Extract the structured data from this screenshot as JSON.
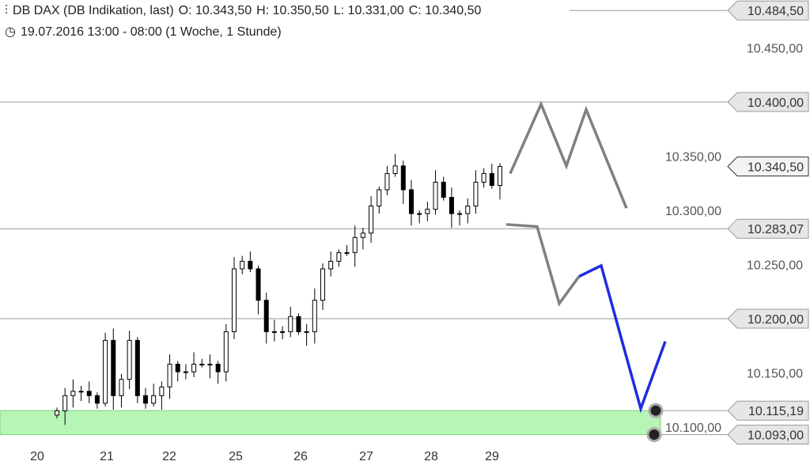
{
  "header": {
    "instrument": "DB DAX (DB Indikation, last)",
    "open": "O: 10.343,50",
    "high": "H: 10.350,50",
    "low": "L: 10.331,00",
    "close": "C: 10.340,50",
    "period": "19.07.2016 13:00 - 08:00 (1 Woche, 1 Stunde)",
    "icons": [
      "candlestick-icon",
      "clock-icon"
    ]
  },
  "chart_data": {
    "type": "candlestick",
    "title": "DB DAX (DB Indikation, last)",
    "x_tick_labels": [
      "20",
      "21",
      "22",
      "25",
      "26",
      "27",
      "28",
      "29"
    ],
    "y_tick_labels": [
      "10.450,00",
      "10.350,00",
      "10.300,00",
      "10.250,00",
      "10.150,00",
      "10.100,00"
    ],
    "y_ticks": [
      10450,
      10350,
      10300,
      10250,
      10150,
      10100
    ],
    "ylim": [
      10055,
      10495
    ],
    "hourly_closes": [
      10115,
      10129,
      10133,
      10133,
      10129,
      10122,
      10180,
      10129,
      10144,
      10180,
      10129,
      10122,
      10129,
      10137,
      10158,
      10151,
      10151,
      10158,
      10158,
      10158,
      10151,
      10188,
      10246,
      10253,
      10246,
      10217,
      10188,
      10188,
      10188,
      10202,
      10188,
      10188,
      10217,
      10246,
      10253,
      10261,
      10261,
      10275,
      10279,
      10304,
      10319,
      10334,
      10341,
      10319,
      10297,
      10297,
      10301,
      10326,
      10312,
      10297,
      10297,
      10304,
      10326,
      10334,
      10323,
      10340.5
    ],
    "levels": [
      {
        "label": "10.484,50",
        "value": 10484.5,
        "style": "short"
      },
      {
        "label": "10.400,00",
        "value": 10400,
        "style": "full"
      },
      {
        "label": "10.340,50",
        "value": 10340.5,
        "style": "current"
      },
      {
        "label": "10.283,07",
        "value": 10283.07,
        "style": "full"
      },
      {
        "label": "10.200,00",
        "value": 10200,
        "style": "full"
      },
      {
        "label": "10.115,19",
        "value": 10115.19,
        "style": "short"
      },
      {
        "label": "10.093,00",
        "value": 10093,
        "style": "short"
      }
    ],
    "support_zone": [
      10093,
      10115.19
    ],
    "projections": [
      {
        "color": "#808080",
        "prices": [
          10334,
          10398,
          10341,
          10393,
          10302
        ]
      },
      {
        "color": "#808080",
        "prices": [
          10287,
          10285,
          10214,
          10239
        ]
      },
      {
        "color": "#1f2de0",
        "prices": [
          10239,
          10249,
          10117,
          10179
        ]
      }
    ],
    "colors": {
      "zone": "#b6f5b6",
      "candle": "#000000",
      "level_line": "#999999",
      "tag_fill": "#e6e6e6"
    }
  }
}
